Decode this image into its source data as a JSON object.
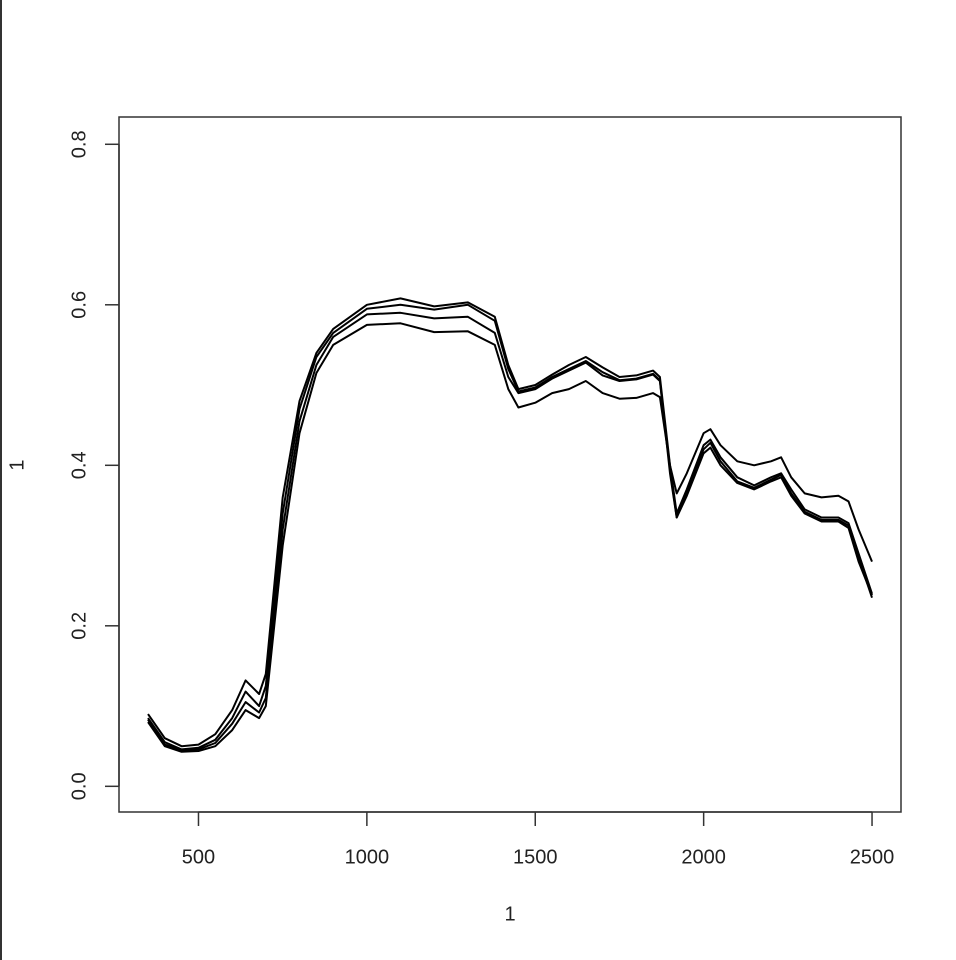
{
  "chart_data": {
    "type": "line",
    "xlabel": "1",
    "ylabel": "1",
    "x": [
      350,
      400,
      450,
      500,
      550,
      600,
      640,
      680,
      700,
      750,
      800,
      850,
      900,
      1000,
      1100,
      1200,
      1300,
      1380,
      1420,
      1450,
      1500,
      1550,
      1600,
      1650,
      1700,
      1750,
      1800,
      1850,
      1870,
      1900,
      1920,
      1950,
      2000,
      2020,
      2050,
      2100,
      2150,
      2200,
      2230,
      2260,
      2300,
      2350,
      2400,
      2430,
      2460,
      2500
    ],
    "series": [
      {
        "color": "#000000",
        "values": [
          0.09,
          0.06,
          0.05,
          0.052,
          0.065,
          0.095,
          0.132,
          0.115,
          0.14,
          0.36,
          0.48,
          0.54,
          0.57,
          0.6,
          0.608,
          0.598,
          0.603,
          0.585,
          0.525,
          0.495,
          0.5,
          0.513,
          0.525,
          0.535,
          0.522,
          0.51,
          0.512,
          0.518,
          0.51,
          0.4,
          0.34,
          0.37,
          0.425,
          0.432,
          0.41,
          0.385,
          0.375,
          0.385,
          0.39,
          0.37,
          0.345,
          0.335,
          0.335,
          0.328,
          0.29,
          0.24
        ]
      },
      {
        "color": "#000000",
        "values": [
          0.085,
          0.055,
          0.046,
          0.048,
          0.058,
          0.085,
          0.118,
          0.1,
          0.125,
          0.34,
          0.47,
          0.535,
          0.565,
          0.595,
          0.6,
          0.594,
          0.6,
          0.58,
          0.52,
          0.492,
          0.497,
          0.51,
          0.52,
          0.53,
          0.516,
          0.506,
          0.508,
          0.514,
          0.506,
          0.395,
          0.335,
          0.365,
          0.42,
          0.428,
          0.405,
          0.38,
          0.372,
          0.382,
          0.388,
          0.365,
          0.342,
          0.332,
          0.332,
          0.325,
          0.285,
          0.235
        ]
      },
      {
        "color": "#000000",
        "values": [
          0.08,
          0.05,
          0.043,
          0.044,
          0.05,
          0.07,
          0.095,
          0.085,
          0.1,
          0.3,
          0.44,
          0.515,
          0.55,
          0.575,
          0.577,
          0.566,
          0.567,
          0.55,
          0.495,
          0.472,
          0.478,
          0.49,
          0.495,
          0.505,
          0.49,
          0.483,
          0.484,
          0.49,
          0.485,
          0.4,
          0.365,
          0.39,
          0.44,
          0.445,
          0.425,
          0.405,
          0.4,
          0.405,
          0.41,
          0.385,
          0.365,
          0.36,
          0.362,
          0.355,
          0.32,
          0.28
        ]
      },
      {
        "color": "#000000",
        "values": [
          0.083,
          0.052,
          0.045,
          0.046,
          0.054,
          0.078,
          0.105,
          0.092,
          0.11,
          0.32,
          0.455,
          0.525,
          0.56,
          0.588,
          0.59,
          0.583,
          0.585,
          0.565,
          0.51,
          0.49,
          0.495,
          0.508,
          0.518,
          0.528,
          0.512,
          0.505,
          0.507,
          0.513,
          0.505,
          0.39,
          0.335,
          0.362,
          0.415,
          0.422,
          0.4,
          0.378,
          0.37,
          0.38,
          0.385,
          0.362,
          0.34,
          0.33,
          0.33,
          0.322,
          0.28,
          0.238
        ]
      }
    ],
    "xlim": [
      264,
      2586
    ],
    "ylim": [
      -0.032,
      0.834
    ],
    "xticks": [
      500,
      1000,
      1500,
      2000,
      2500
    ],
    "yticks": [
      {
        "value": 0,
        "label": "0.0"
      },
      0.2,
      0.4,
      0.6,
      0.8
    ],
    "grid": false
  }
}
